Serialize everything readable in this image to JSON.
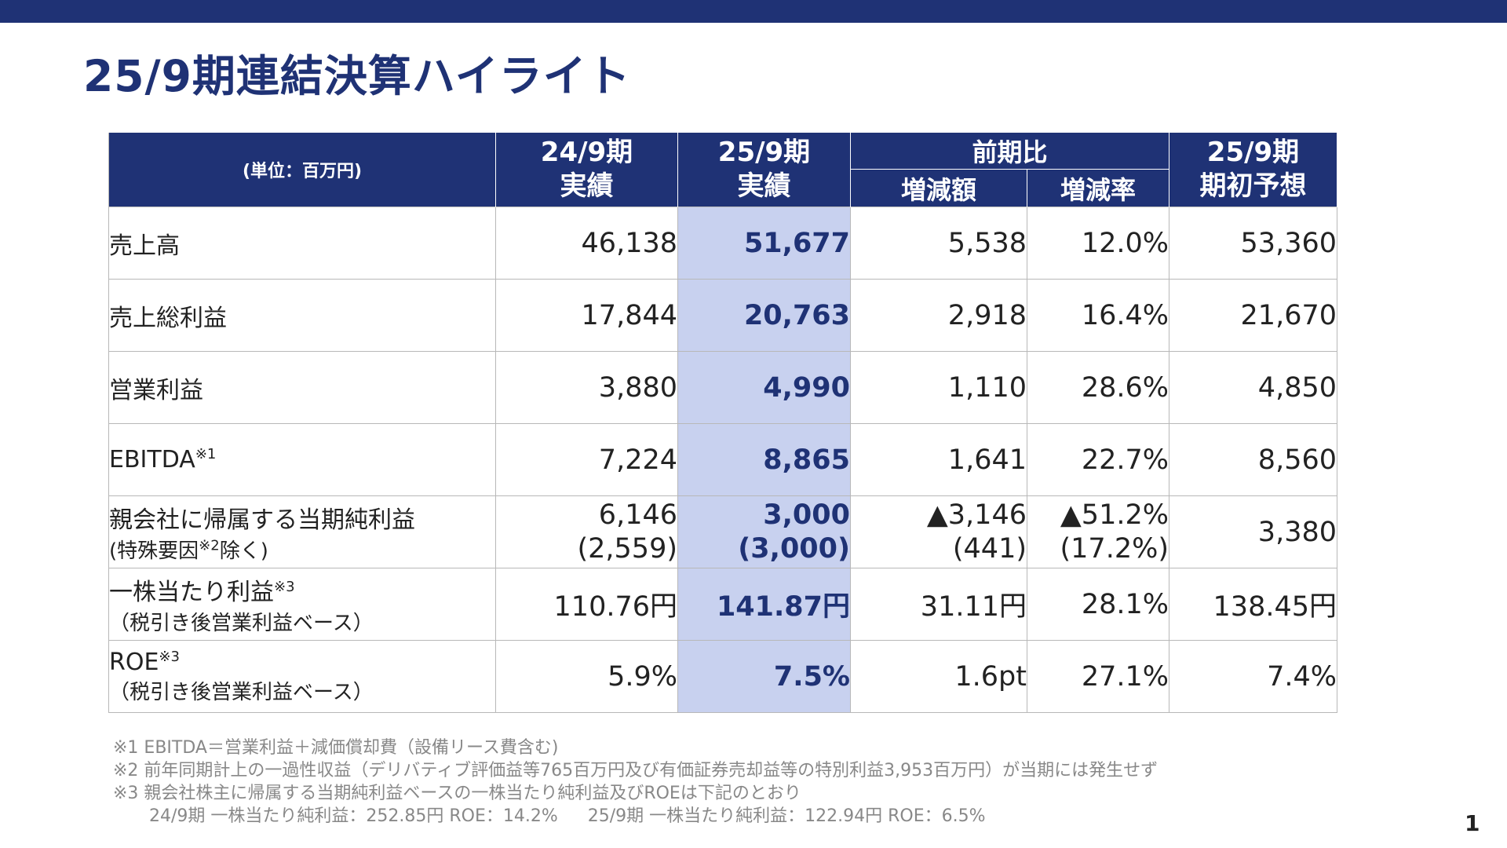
{
  "title": "25/9期連結決算ハイライト",
  "colors": {
    "brand": "#1f3275",
    "highlight": "#c8d1ef"
  },
  "table": {
    "unit_label": "(単位：百万円)",
    "headers": {
      "prev": [
        "24/9期",
        "実績"
      ],
      "curr": [
        "25/9期",
        "実績"
      ],
      "compare_group": "前期比",
      "diff": "増減額",
      "rate": "増減率",
      "forecast": [
        "25/9期",
        "期初予想"
      ]
    },
    "rows": [
      {
        "label": "売上高",
        "prev": "46,138",
        "curr": "51,677",
        "diff": "5,538",
        "rate": "12.0%",
        "forecast": "53,360"
      },
      {
        "label": "売上総利益",
        "prev": "17,844",
        "curr": "20,763",
        "diff": "2,918",
        "rate": "16.4%",
        "forecast": "21,670"
      },
      {
        "label": "営業利益",
        "prev": "3,880",
        "curr": "4,990",
        "diff": "1,110",
        "rate": "28.6%",
        "forecast": "4,850"
      },
      {
        "label": "EBITDA",
        "note": "※1",
        "prev": "7,224",
        "curr": "8,865",
        "diff": "1,641",
        "rate": "22.7%",
        "forecast": "8,560"
      },
      {
        "label": "親会社に帰属する当期純利益",
        "sub_label_a": "(特殊要因",
        "sub_note": "※2",
        "sub_label_b": "除く)",
        "prev": "6,146",
        "prev2": "(2,559)",
        "curr": "3,000",
        "curr2": "(3,000)",
        "diff": "▲3,146",
        "diff2": "(441)",
        "rate": "▲51.2%",
        "rate2": "(17.2%)",
        "forecast": "3,380"
      },
      {
        "label": "一株当たり利益",
        "note": "※3",
        "sub_label": "（税引き後営業利益ベース）",
        "prev": "110.76円",
        "curr": "141.87円",
        "diff": "31.11円",
        "rate": "28.1%",
        "forecast": "138.45円"
      },
      {
        "label": "ROE",
        "note": "※3",
        "sub_label": "（税引き後営業利益ベース）",
        "prev": "5.9%",
        "curr": "7.5%",
        "diff": "1.6pt",
        "rate": "27.1%",
        "forecast": "7.4%"
      }
    ]
  },
  "notes": {
    "n1": "※1 EBITDA＝営業利益＋減価償却費（設備リース費含む)",
    "n2": "※2 前年同期計上の一過性収益（デリバティブ評価益等765百万円及び有価証券売却益等の特別利益3,953百万円）が当期には発生せず",
    "n3": "※3 親会社株主に帰属する当期純利益ベースの一株当たり純利益及びROEは下記のとおり",
    "n3_a": "24/9期  一株当たり純利益：252.85円 ROE：14.2%",
    "n3_b": "25/9期  一株当たり純利益：122.94円 ROE：6.5%"
  },
  "page_number": "1"
}
